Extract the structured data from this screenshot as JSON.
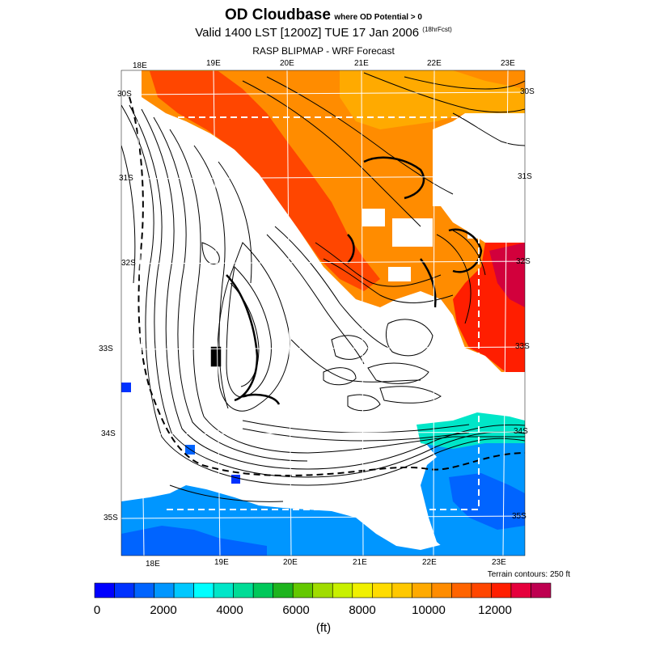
{
  "title": {
    "main": "OD Cloudbase",
    "condition": "where OD Potential > 0",
    "valid_line": "Valid 1400 LST [1200Z] TUE 17 Jan 2006",
    "forecast_hours": "(18hrFcst)",
    "subtitle": "RASP BLIPMAP - WRF Forecast"
  },
  "map": {
    "top_lon_labels": [
      "18E",
      "19E",
      "20E",
      "21E",
      "22E",
      "23E"
    ],
    "bottom_lon_labels": [
      "18E",
      "19E",
      "20E",
      "21E",
      "22E",
      "23E"
    ],
    "left_lat_labels": [
      "30S",
      "31S",
      "32S",
      "33S",
      "34S",
      "35S"
    ],
    "right_lat_labels": [
      "30S",
      "31S",
      "32S",
      "33S",
      "34S",
      "35S"
    ],
    "terrain_note": "Terrain contours: 250 ft"
  },
  "colorbar": {
    "tick_labels": [
      "0",
      "2000",
      "4000",
      "6000",
      "8000",
      "10000",
      "12000"
    ],
    "units": "(ft)",
    "colors": [
      "#0000ff",
      "#0032ff",
      "#0064ff",
      "#0096ff",
      "#00c8ff",
      "#00ffff",
      "#00e6c8",
      "#00dc96",
      "#00c85a",
      "#1eb41e",
      "#64c800",
      "#a0dc00",
      "#c8f000",
      "#f0f000",
      "#ffdc00",
      "#ffc800",
      "#ffaa00",
      "#ff8c00",
      "#ff6400",
      "#ff4600",
      "#ff1e00",
      "#e6003c",
      "#be0050"
    ]
  }
}
